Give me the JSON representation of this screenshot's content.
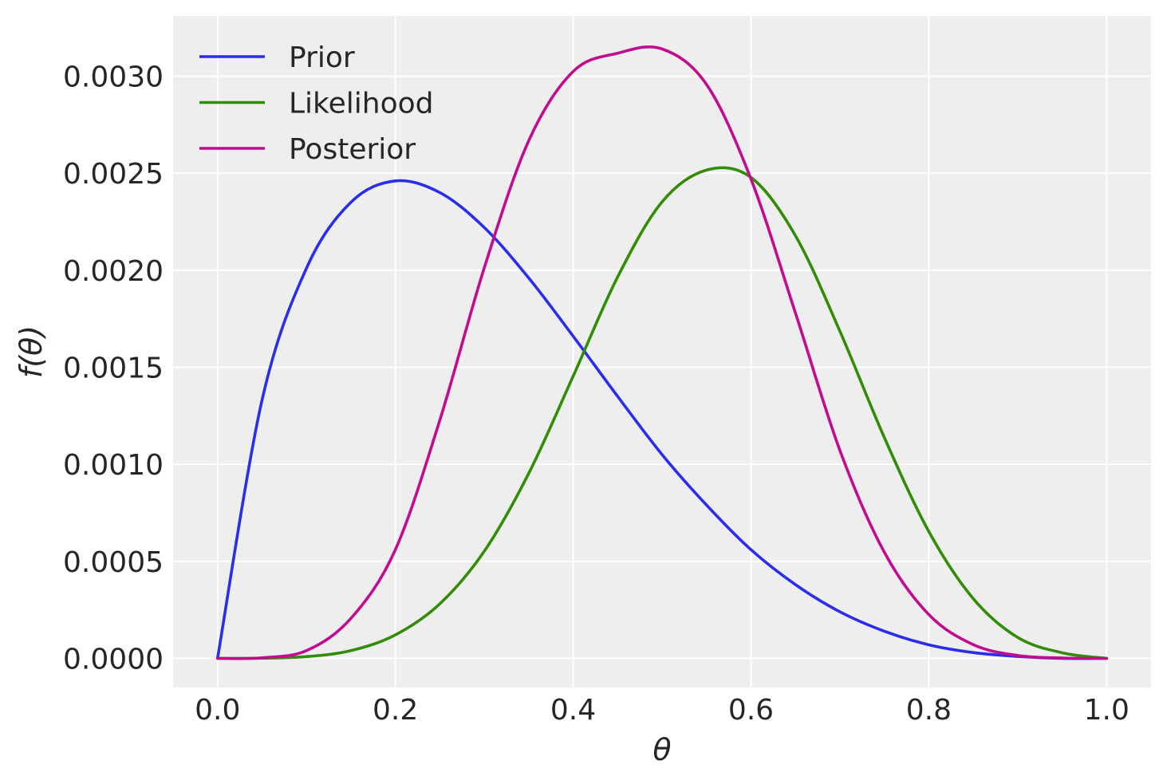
{
  "chart_data": {
    "type": "line",
    "title": "",
    "xlabel": "θ",
    "ylabel": "f(θ)",
    "xlim": [
      -0.05,
      1.05
    ],
    "ylim": [
      -0.00015,
      0.00331
    ],
    "grid": true,
    "legend_position": "top-left",
    "background": "#eeeeee",
    "x_ticks": [
      0.0,
      0.2,
      0.4,
      0.6,
      0.8,
      1.0
    ],
    "x_tick_labels": [
      "0.0",
      "0.2",
      "0.4",
      "0.6",
      "0.8",
      "1.0"
    ],
    "y_ticks": [
      0.0,
      0.0005,
      0.001,
      0.0015,
      0.002,
      0.0025,
      0.003
    ],
    "y_tick_labels": [
      "0.0000",
      "0.0005",
      "0.0010",
      "0.0015",
      "0.0020",
      "0.0025",
      "0.0030"
    ],
    "x": [
      0.0,
      0.05,
      0.1,
      0.15,
      0.2,
      0.25,
      0.3,
      0.35,
      0.4,
      0.45,
      0.5,
      0.55,
      0.6,
      0.65,
      0.7,
      0.75,
      0.8,
      0.85,
      0.9,
      0.95,
      1.0
    ],
    "series": [
      {
        "name": "Prior",
        "color": "#2a2eec",
        "values": [
          0.0,
          0.00133,
          0.00201,
          0.00235,
          0.00246,
          0.0024,
          0.00222,
          0.00196,
          0.00166,
          0.00135,
          0.00105,
          0.00079,
          0.00056,
          0.00038,
          0.00024,
          0.00014,
          7e-05,
          3e-05,
          1e-05,
          0.0,
          0.0
        ]
      },
      {
        "name": "Likelihood",
        "color": "#328c06",
        "values": [
          0.0,
          1e-06,
          9e-06,
          4e-05,
          0.000121,
          0.000281,
          0.000552,
          0.000953,
          0.001454,
          0.001965,
          0.002352,
          0.002516,
          0.002478,
          0.002178,
          0.001686,
          0.001138,
          0.000654,
          0.000308,
          0.000108,
          2.9e-05,
          0.0
        ]
      },
      {
        "name": "Posterior",
        "color": "#c10c90",
        "values": [
          0.0,
          3e-06,
          4e-05,
          0.000206,
          0.00056,
          0.001227,
          0.002012,
          0.002667,
          0.003024,
          0.003118,
          0.00314,
          0.002957,
          0.00247,
          0.00178,
          0.001072,
          0.000547,
          0.000226,
          7.1e-05,
          1.5e-05,
          2e-06,
          0.0
        ]
      }
    ]
  }
}
